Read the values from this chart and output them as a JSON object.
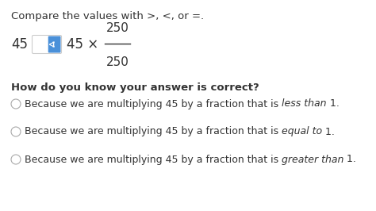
{
  "bg_color": "#ffffff",
  "font_color": "#333333",
  "title_text": "Compare the values with >, <, or =.",
  "title_fontsize": 9.5,
  "bold_question": "How do you know your answer is correct?",
  "bold_q_fontsize": 9.5,
  "spinner_color": "#4a90d9",
  "radio_options_before": [
    "Because we are multiplying 45 by a fraction that is ",
    "Because we are multiplying 45 by a fraction that is ",
    "Because we are multiplying 45 by a fraction that is "
  ],
  "italic_parts": [
    "less than",
    "equal to",
    "greater than"
  ],
  "radio_options_after": [
    " 1.",
    " 1.",
    " 1."
  ],
  "radio_fontsize": 9.0
}
